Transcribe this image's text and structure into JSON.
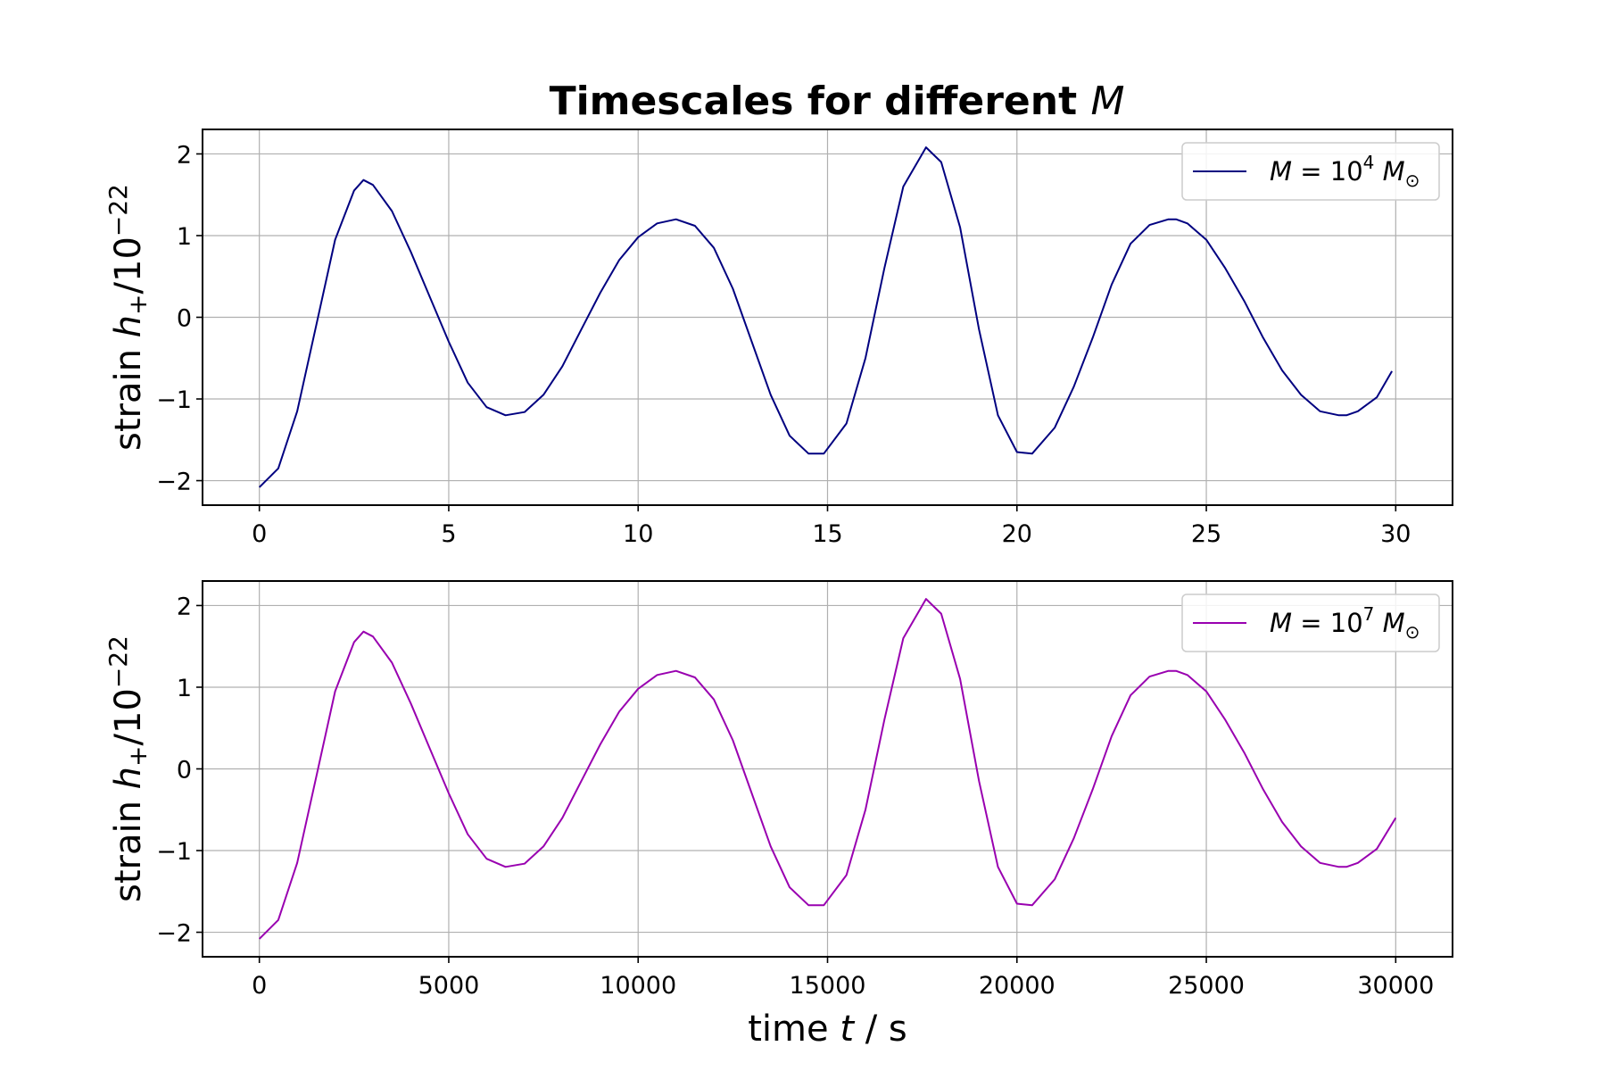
{
  "title": {
    "prefix": "Timescales for different ",
    "symbol": "M"
  },
  "chart_data": [
    {
      "type": "line",
      "ylabel": {
        "prefix": "strain ",
        "symbol": "h",
        "sub": "+",
        "mid": "/10",
        "sup": "−22"
      },
      "xlabel": null,
      "xlim": [
        -1.5,
        31.5
      ],
      "ylim": [
        -2.3,
        2.3
      ],
      "xticks": [
        0,
        5,
        10,
        15,
        20,
        25,
        30
      ],
      "xtick_labels": [
        "0",
        "5",
        "10",
        "15",
        "20",
        "25",
        "30"
      ],
      "yticks": [
        -2,
        -1,
        0,
        1,
        2
      ],
      "ytick_labels": [
        "−2",
        "−1",
        "0",
        "1",
        "2"
      ],
      "grid": true,
      "legend_position": "top-right",
      "series": [
        {
          "name": {
            "lhs": "M",
            "eq": " = 10",
            "exp": "4",
            "unit": " M",
            "sub": "⊙"
          },
          "color": "#000080",
          "x": [
            0.0,
            0.5,
            1.0,
            1.5,
            2.0,
            2.5,
            2.75,
            3.0,
            3.5,
            4.0,
            4.5,
            5.0,
            5.5,
            6.0,
            6.5,
            7.0,
            7.5,
            8.0,
            8.5,
            9.0,
            9.5,
            10.0,
            10.5,
            11.0,
            11.5,
            12.0,
            12.5,
            13.0,
            13.5,
            14.0,
            14.5,
            14.9,
            15.5,
            16.0,
            16.5,
            17.0,
            17.6,
            18.0,
            18.5,
            19.0,
            19.5,
            20.0,
            20.4,
            21.0,
            21.5,
            22.0,
            22.5,
            23.0,
            23.5,
            24.0,
            24.2,
            24.5,
            25.0,
            25.5,
            26.0,
            26.5,
            27.0,
            27.5,
            28.0,
            28.5,
            28.7,
            29.0,
            29.5,
            29.9
          ],
          "values": [
            -2.08,
            -1.85,
            -1.15,
            -0.1,
            0.95,
            1.55,
            1.68,
            1.62,
            1.3,
            0.8,
            0.25,
            -0.3,
            -0.8,
            -1.1,
            -1.2,
            -1.16,
            -0.95,
            -0.6,
            -0.15,
            0.3,
            0.7,
            0.98,
            1.15,
            1.2,
            1.12,
            0.85,
            0.35,
            -0.3,
            -0.95,
            -1.45,
            -1.67,
            -1.67,
            -1.3,
            -0.5,
            0.6,
            1.6,
            2.08,
            1.9,
            1.1,
            -0.15,
            -1.2,
            -1.65,
            -1.67,
            -1.35,
            -0.85,
            -0.25,
            0.4,
            0.9,
            1.13,
            1.2,
            1.2,
            1.15,
            0.95,
            0.6,
            0.2,
            -0.25,
            -0.65,
            -0.95,
            -1.15,
            -1.2,
            -1.2,
            -1.15,
            -0.98,
            -0.66
          ]
        }
      ]
    },
    {
      "type": "line",
      "ylabel": {
        "prefix": "strain ",
        "symbol": "h",
        "sub": "+",
        "mid": "/10",
        "sup": "−22"
      },
      "xlabel": {
        "prefix": "time ",
        "symbol": "t",
        "suffix": " / s"
      },
      "xlim": [
        -1500,
        31500
      ],
      "ylim": [
        -2.3,
        2.3
      ],
      "xticks": [
        0,
        5000,
        10000,
        15000,
        20000,
        25000,
        30000
      ],
      "xtick_labels": [
        "0",
        "5000",
        "10000",
        "15000",
        "20000",
        "25000",
        "30000"
      ],
      "yticks": [
        -2,
        -1,
        0,
        1,
        2
      ],
      "ytick_labels": [
        "−2",
        "−1",
        "0",
        "1",
        "2"
      ],
      "grid": true,
      "legend_position": "top-right",
      "series": [
        {
          "name": {
            "lhs": "M",
            "eq": " = 10",
            "exp": "7",
            "unit": " M",
            "sub": "⊙"
          },
          "color": "#9900b0",
          "x": [
            0,
            500,
            1000,
            1500,
            2000,
            2500,
            2750,
            3000,
            3500,
            4000,
            4500,
            5000,
            5500,
            6000,
            6500,
            7000,
            7500,
            8000,
            8500,
            9000,
            9500,
            10000,
            10500,
            11000,
            11500,
            12000,
            12500,
            13000,
            13500,
            14000,
            14500,
            14900,
            15500,
            16000,
            16500,
            17000,
            17600,
            18000,
            18500,
            19000,
            19500,
            20000,
            20400,
            21000,
            21500,
            22000,
            22500,
            23000,
            23500,
            24000,
            24200,
            24500,
            25000,
            25500,
            26000,
            26500,
            27000,
            27500,
            28000,
            28500,
            28700,
            29000,
            29500,
            30000
          ],
          "values": [
            -2.08,
            -1.85,
            -1.15,
            -0.1,
            0.95,
            1.55,
            1.68,
            1.62,
            1.3,
            0.8,
            0.25,
            -0.3,
            -0.8,
            -1.1,
            -1.2,
            -1.16,
            -0.95,
            -0.6,
            -0.15,
            0.3,
            0.7,
            0.98,
            1.15,
            1.2,
            1.12,
            0.85,
            0.35,
            -0.3,
            -0.95,
            -1.45,
            -1.67,
            -1.67,
            -1.3,
            -0.5,
            0.6,
            1.6,
            2.08,
            1.9,
            1.1,
            -0.15,
            -1.2,
            -1.65,
            -1.67,
            -1.35,
            -0.85,
            -0.25,
            0.4,
            0.9,
            1.13,
            1.2,
            1.2,
            1.15,
            0.95,
            0.6,
            0.2,
            -0.25,
            -0.65,
            -0.95,
            -1.15,
            -1.2,
            -1.2,
            -1.15,
            -0.98,
            -0.6
          ]
        }
      ]
    }
  ]
}
